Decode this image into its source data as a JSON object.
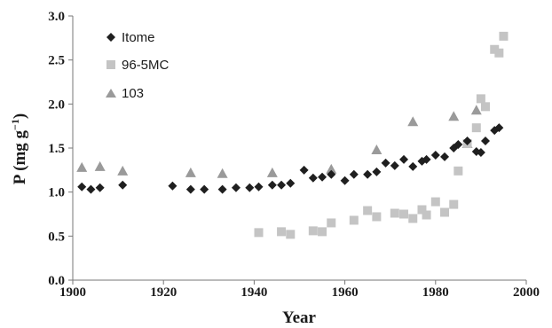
{
  "chart_data": {
    "type": "scatter",
    "xlabel": "Year",
    "ylabel": {
      "base": "P  (mg g",
      "sup": "−1",
      "tail": ")"
    },
    "xlim": [
      1900,
      2000
    ],
    "ylim": [
      0.0,
      3.0
    ],
    "xticks": [
      "1900",
      "1920",
      "1940",
      "1960",
      "1980",
      "2000"
    ],
    "yticks": [
      "0.0",
      "0.5",
      "1.0",
      "1.5",
      "2.0",
      "2.5",
      "3.0"
    ],
    "grid": false,
    "legend_position": "top-left",
    "series": [
      {
        "name": "Itome",
        "marker": "diamond",
        "color": "#1f1f1f",
        "points": [
          [
            1902,
            1.06
          ],
          [
            1904,
            1.03
          ],
          [
            1906,
            1.05
          ],
          [
            1911,
            1.08
          ],
          [
            1922,
            1.07
          ],
          [
            1926,
            1.03
          ],
          [
            1929,
            1.03
          ],
          [
            1933,
            1.03
          ],
          [
            1936,
            1.05
          ],
          [
            1939,
            1.05
          ],
          [
            1941,
            1.06
          ],
          [
            1944,
            1.08
          ],
          [
            1946,
            1.08
          ],
          [
            1948,
            1.1
          ],
          [
            1951,
            1.25
          ],
          [
            1953,
            1.16
          ],
          [
            1955,
            1.17
          ],
          [
            1957,
            1.2
          ],
          [
            1960,
            1.13
          ],
          [
            1962,
            1.2
          ],
          [
            1965,
            1.2
          ],
          [
            1967,
            1.23
          ],
          [
            1969,
            1.33
          ],
          [
            1971,
            1.3
          ],
          [
            1973,
            1.37
          ],
          [
            1975,
            1.29
          ],
          [
            1977,
            1.35
          ],
          [
            1978,
            1.37
          ],
          [
            1980,
            1.42
          ],
          [
            1982,
            1.4
          ],
          [
            1984,
            1.5
          ],
          [
            1985,
            1.54
          ],
          [
            1987,
            1.58
          ],
          [
            1989,
            1.46
          ],
          [
            1990,
            1.45
          ],
          [
            1991,
            1.58
          ],
          [
            1993,
            1.7
          ],
          [
            1994,
            1.73
          ]
        ]
      },
      {
        "name": "96-5MC",
        "marker": "square",
        "color": "#c4c4c4",
        "points": [
          [
            1941,
            0.54
          ],
          [
            1946,
            0.55
          ],
          [
            1948,
            0.52
          ],
          [
            1953,
            0.56
          ],
          [
            1955,
            0.55
          ],
          [
            1957,
            0.65
          ],
          [
            1962,
            0.68
          ],
          [
            1965,
            0.79
          ],
          [
            1967,
            0.72
          ],
          [
            1971,
            0.76
          ],
          [
            1973,
            0.75
          ],
          [
            1975,
            0.7
          ],
          [
            1977,
            0.8
          ],
          [
            1978,
            0.74
          ],
          [
            1980,
            0.89
          ],
          [
            1982,
            0.77
          ],
          [
            1984,
            0.86
          ],
          [
            1985,
            1.24
          ],
          [
            1987,
            1.55
          ],
          [
            1989,
            1.73
          ],
          [
            1990,
            2.06
          ],
          [
            1991,
            1.97
          ],
          [
            1993,
            2.62
          ],
          [
            1994,
            2.58
          ],
          [
            1995,
            2.77
          ]
        ]
      },
      {
        "name": "103",
        "marker": "triangle",
        "color": "#9a9a9a",
        "points": [
          [
            1902,
            1.28
          ],
          [
            1906,
            1.29
          ],
          [
            1911,
            1.24
          ],
          [
            1926,
            1.22
          ],
          [
            1933,
            1.21
          ],
          [
            1944,
            1.22
          ],
          [
            1957,
            1.26
          ],
          [
            1967,
            1.48
          ],
          [
            1975,
            1.8
          ],
          [
            1984,
            1.86
          ],
          [
            1987,
            1.55
          ],
          [
            1989,
            1.93
          ]
        ]
      }
    ]
  }
}
